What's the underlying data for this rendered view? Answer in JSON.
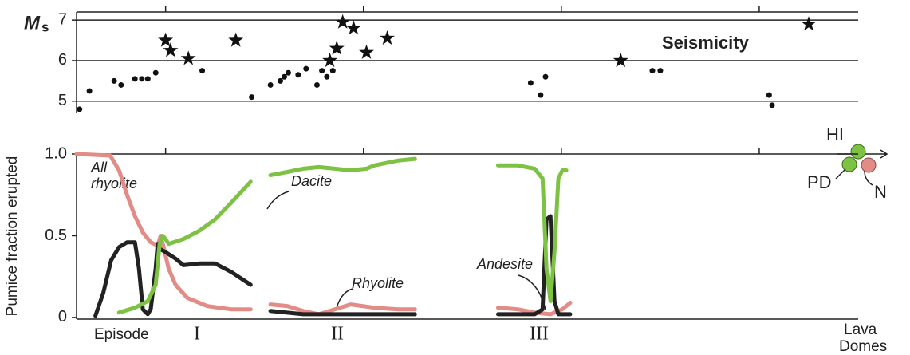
{
  "chart_data": [
    {
      "type": "scatter",
      "ylabel": "M",
      "ylabel_subscript": "s",
      "title": "Seismicity",
      "xlim": [
        0.1,
        8.0
      ],
      "xticks": [
        1,
        3,
        5,
        7
      ],
      "ylim": [
        4.7,
        7.2
      ],
      "yticks": [
        5,
        6,
        7
      ],
      "grid": true,
      "series": [
        {
          "marker": "circle",
          "color": "#111111",
          "x": [
            0.13,
            0.23,
            0.48,
            0.55,
            0.69,
            0.76,
            0.82,
            0.9,
            1.37,
            1.87,
            2.06,
            2.16,
            2.2,
            2.24,
            2.34,
            2.42,
            2.53,
            2.58,
            2.63,
            2.69,
            4.69,
            4.79,
            4.84,
            5.92,
            6.0,
            7.1,
            7.13
          ],
          "values": [
            4.8,
            5.25,
            5.5,
            5.4,
            5.55,
            5.55,
            5.55,
            5.7,
            5.75,
            5.1,
            5.4,
            5.5,
            5.6,
            5.7,
            5.65,
            5.8,
            5.4,
            5.75,
            5.6,
            5.75,
            5.45,
            5.15,
            5.6,
            5.75,
            5.75,
            5.15,
            4.9
          ]
        },
        {
          "marker": "star",
          "color": "#111111",
          "x": [
            1.0,
            1.05,
            1.23,
            1.71,
            2.66,
            2.73,
            2.79,
            2.9,
            3.03,
            3.24,
            5.6,
            7.5
          ],
          "values": [
            6.5,
            6.25,
            6.05,
            6.5,
            6.0,
            6.3,
            6.95,
            6.8,
            6.2,
            6.55,
            6.0,
            6.9
          ]
        }
      ]
    },
    {
      "type": "line",
      "ylabel": "Pumice fraction erupted",
      "xlim": [
        0.1,
        8.0
      ],
      "xticks": [
        1,
        3,
        5,
        7
      ],
      "ylim": [
        -0.01,
        1.0
      ],
      "yticks": [
        0,
        0.5,
        {
          "value": 1,
          "label": "1.0"
        }
      ],
      "grid": false,
      "series": [
        {
          "name": "Rhyolite",
          "color": "#e38b86",
          "x": [
            0.1,
            0.44,
            0.53,
            0.61,
            0.69,
            0.77,
            0.85,
            0.92,
            0.95,
            0.98,
            1.03,
            1.1,
            1.22,
            1.42,
            1.66,
            1.86,
            null,
            2.06,
            2.23,
            2.39,
            2.55,
            2.71,
            2.87,
            3.11,
            3.35,
            3.52,
            null,
            4.36,
            4.56,
            4.73,
            4.89,
            5.01,
            5.09
          ],
          "values": [
            1,
            0.99,
            0.9,
            0.75,
            0.62,
            0.52,
            0.46,
            0.44,
            0.5,
            0.43,
            0.3,
            0.2,
            0.12,
            0.07,
            0.05,
            0.05,
            null,
            0.08,
            0.07,
            0.04,
            0.02,
            0.05,
            0.08,
            0.06,
            0.05,
            0.05,
            null,
            0.06,
            0.05,
            0.03,
            0.02,
            0.05,
            0.09
          ]
        },
        {
          "name": "Andesite",
          "color": "#222222",
          "x": [
            0.29,
            0.37,
            0.45,
            0.53,
            0.61,
            0.69,
            0.73,
            0.77,
            0.82,
            0.85,
            0.9,
            0.92,
            0.94,
            1.0,
            1.1,
            1.18,
            1.34,
            1.5,
            1.66,
            1.86,
            null,
            2.06,
            2.39,
            3.03,
            3.52,
            null,
            4.36,
            4.73,
            4.81,
            4.85,
            4.89,
            4.93,
            4.97,
            5.09
          ],
          "values": [
            0.01,
            0.15,
            0.35,
            0.43,
            0.46,
            0.46,
            0.3,
            0.05,
            0.02,
            0.05,
            0.3,
            0.45,
            0.42,
            0.4,
            0.36,
            0.32,
            0.33,
            0.33,
            0.28,
            0.2,
            null,
            0.04,
            0.02,
            0.02,
            0.02,
            null,
            0.02,
            0.02,
            0.05,
            0.6,
            0.62,
            0.1,
            0.02,
            0.02
          ]
        },
        {
          "name": "Dacite",
          "color": "#7dc242",
          "x": [
            0.53,
            0.69,
            0.82,
            0.9,
            0.94,
            0.97,
            1.0,
            1.03,
            1.18,
            1.34,
            1.5,
            1.66,
            1.86,
            null,
            2.06,
            2.23,
            2.39,
            2.55,
            2.71,
            2.87,
            3.03,
            3.11,
            3.35,
            3.52,
            null,
            4.36,
            4.56,
            4.73,
            4.81,
            4.85,
            4.89,
            4.93,
            4.97,
            5.01,
            5.05
          ],
          "values": [
            0.03,
            0.06,
            0.1,
            0.2,
            0.45,
            0.5,
            0.48,
            0.45,
            0.48,
            0.53,
            0.6,
            0.7,
            0.83,
            null,
            0.87,
            0.89,
            0.91,
            0.92,
            0.91,
            0.9,
            0.91,
            0.93,
            0.96,
            0.97,
            null,
            0.93,
            0.93,
            0.91,
            0.85,
            0.3,
            0.1,
            0.4,
            0.85,
            0.9,
            0.9
          ]
        }
      ],
      "all_rhyolite": [
        "All",
        "rhyolite"
      ],
      "episodes": [
        "Episode",
        "I",
        "II",
        "III"
      ],
      "lava_domes": [
        "Lava",
        "Domes"
      ],
      "dome_labels": [
        "HI",
        "PD",
        "N"
      ]
    }
  ]
}
